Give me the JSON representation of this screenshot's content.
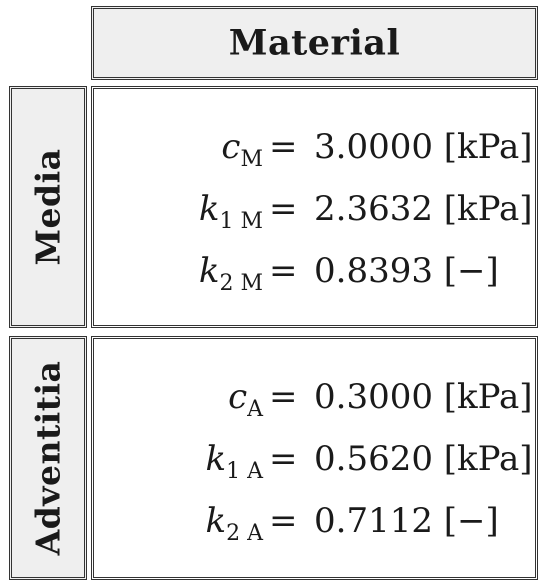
{
  "header": {
    "title": "Material"
  },
  "sections": [
    {
      "label": "Media",
      "params": [
        {
          "symbol": "c",
          "subscript": "M",
          "value": "3.0000",
          "unit": "[kPa]"
        },
        {
          "symbol": "k",
          "subscript": "1 M",
          "value": "2.3632",
          "unit": "[kPa]"
        },
        {
          "symbol": "k",
          "subscript": "2 M",
          "value": "0.8393",
          "unit": "[−]"
        }
      ]
    },
    {
      "label": "Adventitia",
      "params": [
        {
          "symbol": "c",
          "subscript": "A",
          "value": "0.3000",
          "unit": "[kPa]"
        },
        {
          "symbol": "k",
          "subscript": "1 A",
          "value": "0.5620",
          "unit": "[kPa]"
        },
        {
          "symbol": "k",
          "subscript": "2 A",
          "value": "0.7112",
          "unit": "[−]"
        }
      ]
    }
  ]
}
